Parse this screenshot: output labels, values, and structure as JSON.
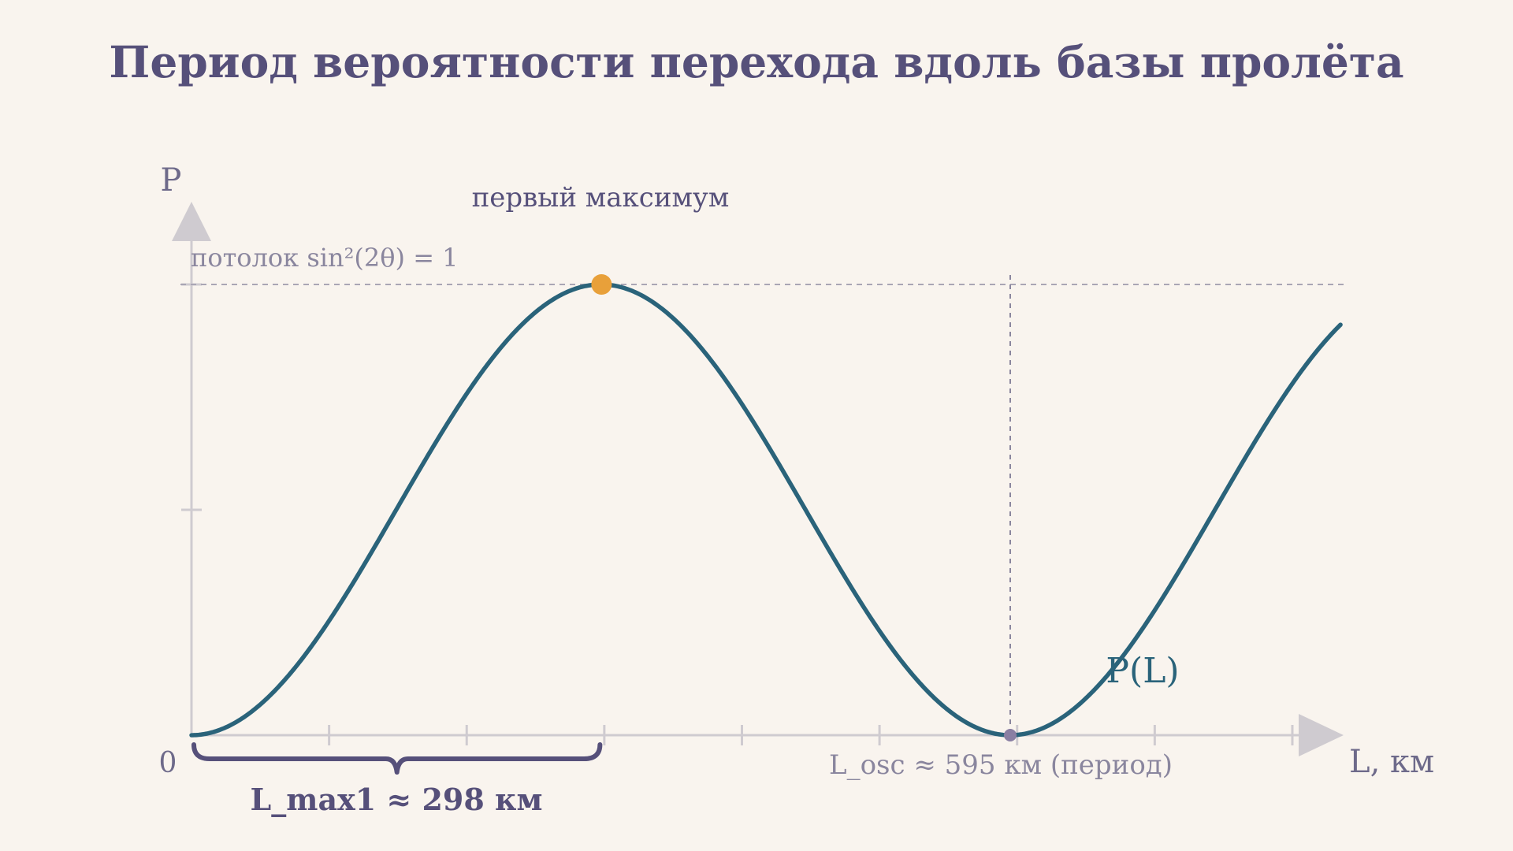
{
  "chart_data": {
    "type": "line",
    "title": "Период вероятности перехода вдоль базы пролёта",
    "xlabel": "L, км",
    "ylabel": "P",
    "origin_label": "0",
    "xlim": [
      0,
      835
    ],
    "ylim": [
      0,
      1
    ],
    "series": [
      {
        "name": "P(L)",
        "function": "sin^2(pi * L / 595)",
        "period": 595,
        "color": "#2a637a"
      }
    ],
    "annotations": {
      "ceiling": "потолок sin²(2θ) = 1",
      "first_maximum": "первый максимум",
      "first_maximum_x": 298,
      "period_text": "L_osc  ≈  595 км (период)",
      "period_x": 595,
      "lmax_text": "L_max1  ≈  298 км"
    },
    "colors": {
      "curve": "#2a637a",
      "max_marker": "#e8a03a",
      "min_marker": "#8a7fa3",
      "title": "#56507a",
      "axis": "#cfcbd0"
    }
  }
}
